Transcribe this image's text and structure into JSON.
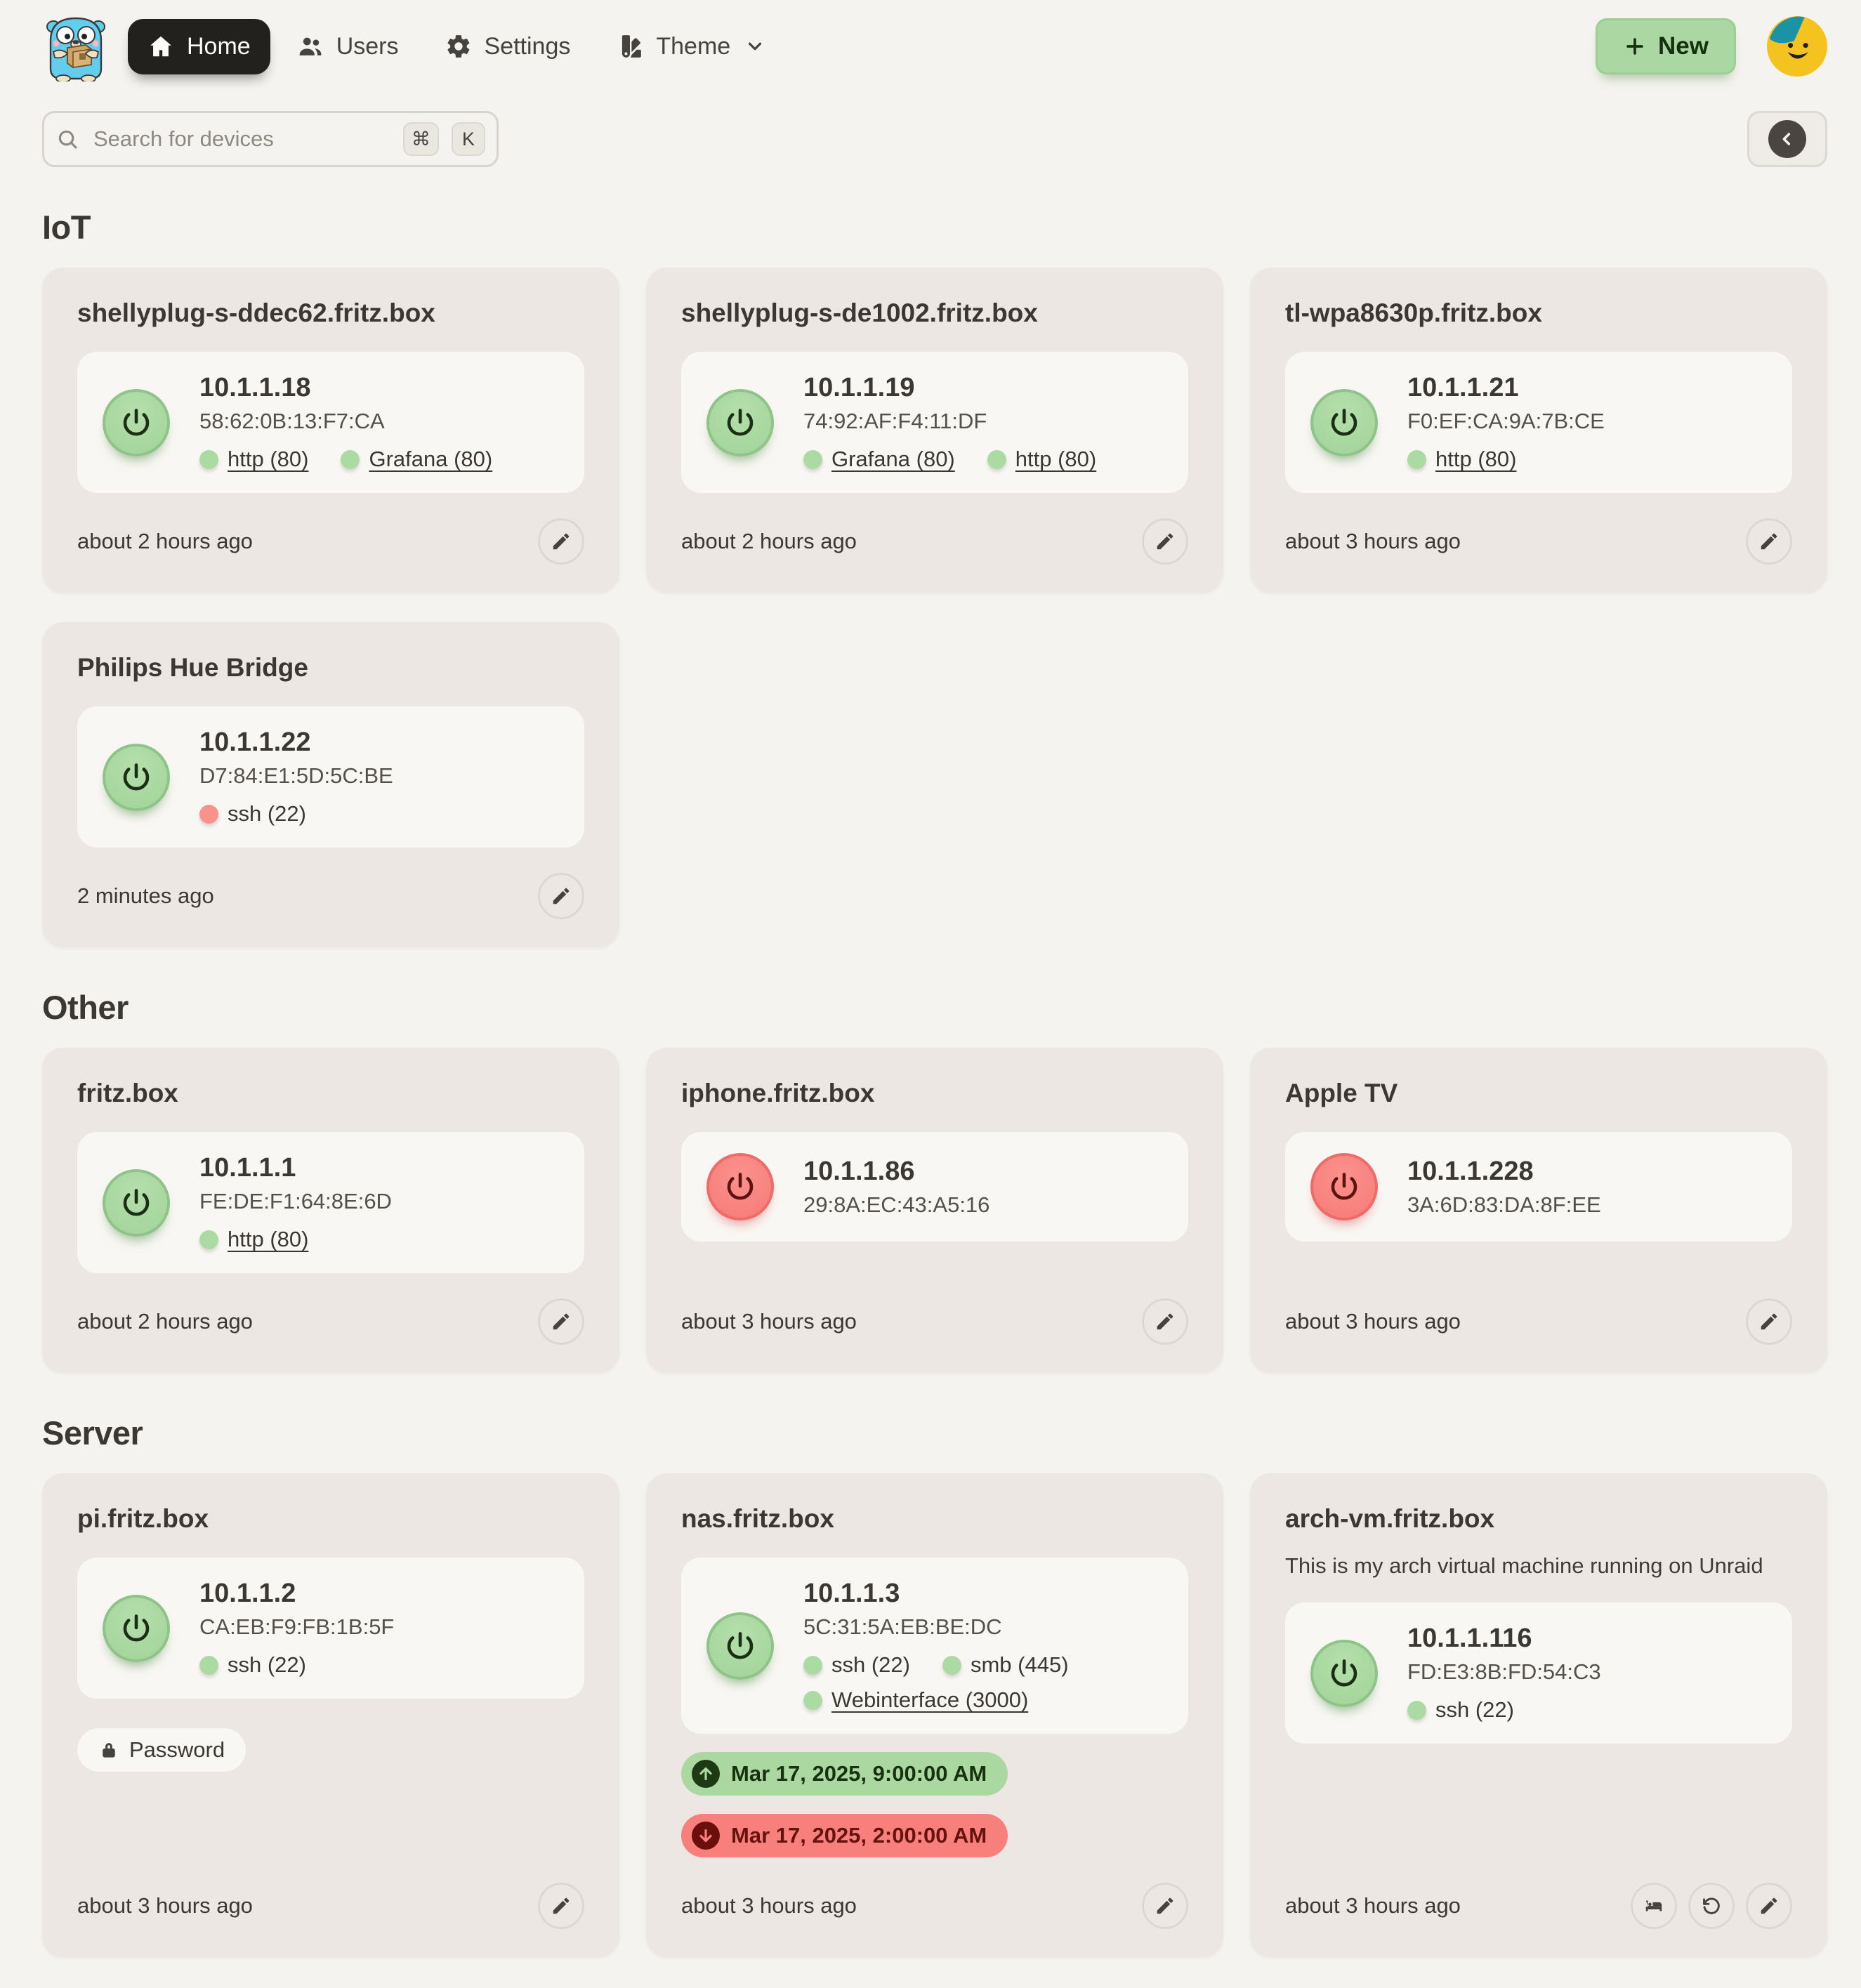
{
  "nav": {
    "logo_icon": "gopher-logo",
    "items": [
      {
        "id": "home",
        "label": "Home",
        "icon": "home-icon",
        "active": true
      },
      {
        "id": "users",
        "label": "Users",
        "icon": "users-icon",
        "active": false
      },
      {
        "id": "settings",
        "label": "Settings",
        "icon": "gear-icon",
        "active": false
      },
      {
        "id": "theme",
        "label": "Theme",
        "icon": "swatch-icon",
        "active": false,
        "chevron_icon": "chevron-down-icon"
      }
    ],
    "new_button": {
      "label": "New",
      "icon": "plus-icon"
    },
    "avatar_icon": "smiley-avatar"
  },
  "search": {
    "placeholder": "Search for devices",
    "icon": "search-icon",
    "shortcut_keys": [
      "⌘",
      "K"
    ],
    "collapse_icon": "chevron-left-icon"
  },
  "sections": [
    {
      "title": "IoT",
      "cards": [
        {
          "title": "shellyplug-s-ddec62.fritz.box",
          "power": "on",
          "ip": "10.1.1.18",
          "mac": "58:62:0B:13:F7:CA",
          "ports": [
            {
              "label": "http (80)",
              "status": "up",
              "link": true
            },
            {
              "label": "Grafana (80)",
              "status": "up",
              "link": true
            }
          ],
          "last_seen": "about 2 hours ago",
          "actions": [
            {
              "id": "edit",
              "icon": "pencil-icon"
            }
          ]
        },
        {
          "title": "shellyplug-s-de1002.fritz.box",
          "power": "on",
          "ip": "10.1.1.19",
          "mac": "74:92:AF:F4:11:DF",
          "ports": [
            {
              "label": "Grafana (80)",
              "status": "up",
              "link": true
            },
            {
              "label": "http (80)",
              "status": "up",
              "link": true
            }
          ],
          "last_seen": "about 2 hours ago",
          "actions": [
            {
              "id": "edit",
              "icon": "pencil-icon"
            }
          ]
        },
        {
          "title": "tl-wpa8630p.fritz.box",
          "power": "on",
          "ip": "10.1.1.21",
          "mac": "F0:EF:CA:9A:7B:CE",
          "ports": [
            {
              "label": "http (80)",
              "status": "up",
              "link": true
            }
          ],
          "last_seen": "about 3 hours ago",
          "actions": [
            {
              "id": "edit",
              "icon": "pencil-icon"
            }
          ]
        },
        {
          "title": "Philips Hue Bridge",
          "power": "on",
          "ip": "10.1.1.22",
          "mac": "D7:84:E1:5D:5C:BE",
          "ports": [
            {
              "label": "ssh (22)",
              "status": "down",
              "link": false
            }
          ],
          "last_seen": "2 minutes ago",
          "actions": [
            {
              "id": "edit",
              "icon": "pencil-icon"
            }
          ]
        }
      ]
    },
    {
      "title": "Other",
      "cards": [
        {
          "title": "fritz.box",
          "power": "on",
          "ip": "10.1.1.1",
          "mac": "FE:DE:F1:64:8E:6D",
          "ports": [
            {
              "label": "http (80)",
              "status": "up",
              "link": true
            }
          ],
          "last_seen": "about 2 hours ago",
          "actions": [
            {
              "id": "edit",
              "icon": "pencil-icon"
            }
          ]
        },
        {
          "title": "iphone.fritz.box",
          "power": "off",
          "ip": "10.1.1.86",
          "mac": "29:8A:EC:43:A5:16",
          "ports": [],
          "last_seen": "about 3 hours ago",
          "actions": [
            {
              "id": "edit",
              "icon": "pencil-icon"
            }
          ]
        },
        {
          "title": "Apple TV",
          "power": "off",
          "ip": "10.1.1.228",
          "mac": "3A:6D:83:DA:8F:EE",
          "ports": [],
          "last_seen": "about 3 hours ago",
          "actions": [
            {
              "id": "edit",
              "icon": "pencil-icon"
            }
          ]
        }
      ]
    },
    {
      "title": "Server",
      "cards": [
        {
          "title": "pi.fritz.box",
          "power": "on",
          "ip": "10.1.1.2",
          "mac": "CA:EB:F9:FB:1B:5F",
          "ports": [
            {
              "label": "ssh (22)",
              "status": "up",
              "link": false
            }
          ],
          "password_label": "Password",
          "password_icon": "lock-icon",
          "last_seen": "about 3 hours ago",
          "actions": [
            {
              "id": "edit",
              "icon": "pencil-icon"
            }
          ]
        },
        {
          "title": "nas.fritz.box",
          "power": "on",
          "ip": "10.1.1.3",
          "mac": "5C:31:5A:EB:BE:DC",
          "ports": [
            {
              "label": "ssh (22)",
              "status": "up",
              "link": false
            },
            {
              "label": "smb (445)",
              "status": "up",
              "link": false
            },
            {
              "label": "Webinterface (3000)",
              "status": "up",
              "link": true
            }
          ],
          "schedules": [
            {
              "tone": "up",
              "icon": "arrow-up-icon",
              "label": "Mar 17, 2025, 9:00:00 AM"
            },
            {
              "tone": "down",
              "icon": "arrow-down-icon",
              "label": "Mar 17, 2025, 2:00:00 AM"
            }
          ],
          "last_seen": "about 3 hours ago",
          "actions": [
            {
              "id": "edit",
              "icon": "pencil-icon"
            }
          ]
        },
        {
          "title": "arch-vm.fritz.box",
          "description": "This is my arch virtual machine running on Unraid",
          "power": "on",
          "ip": "10.1.1.116",
          "mac": "FD:E3:8B:FD:54:C3",
          "ports": [
            {
              "label": "ssh (22)",
              "status": "up",
              "link": false
            }
          ],
          "last_seen": "about 3 hours ago",
          "actions": [
            {
              "id": "sleep",
              "icon": "bed-icon"
            },
            {
              "id": "restart",
              "icon": "restart-icon"
            },
            {
              "id": "edit",
              "icon": "pencil-icon"
            }
          ]
        }
      ]
    }
  ],
  "colors": {
    "page_bg": "#f5f3ef",
    "card_bg": "#ece7e2",
    "panel_bg": "#f9f7f4",
    "green": "#abd8a1",
    "green_dark": "#17320f",
    "red": "#f8807c",
    "red_dark": "#66120e",
    "text": "#3b3834",
    "muted": "#54504a"
  }
}
